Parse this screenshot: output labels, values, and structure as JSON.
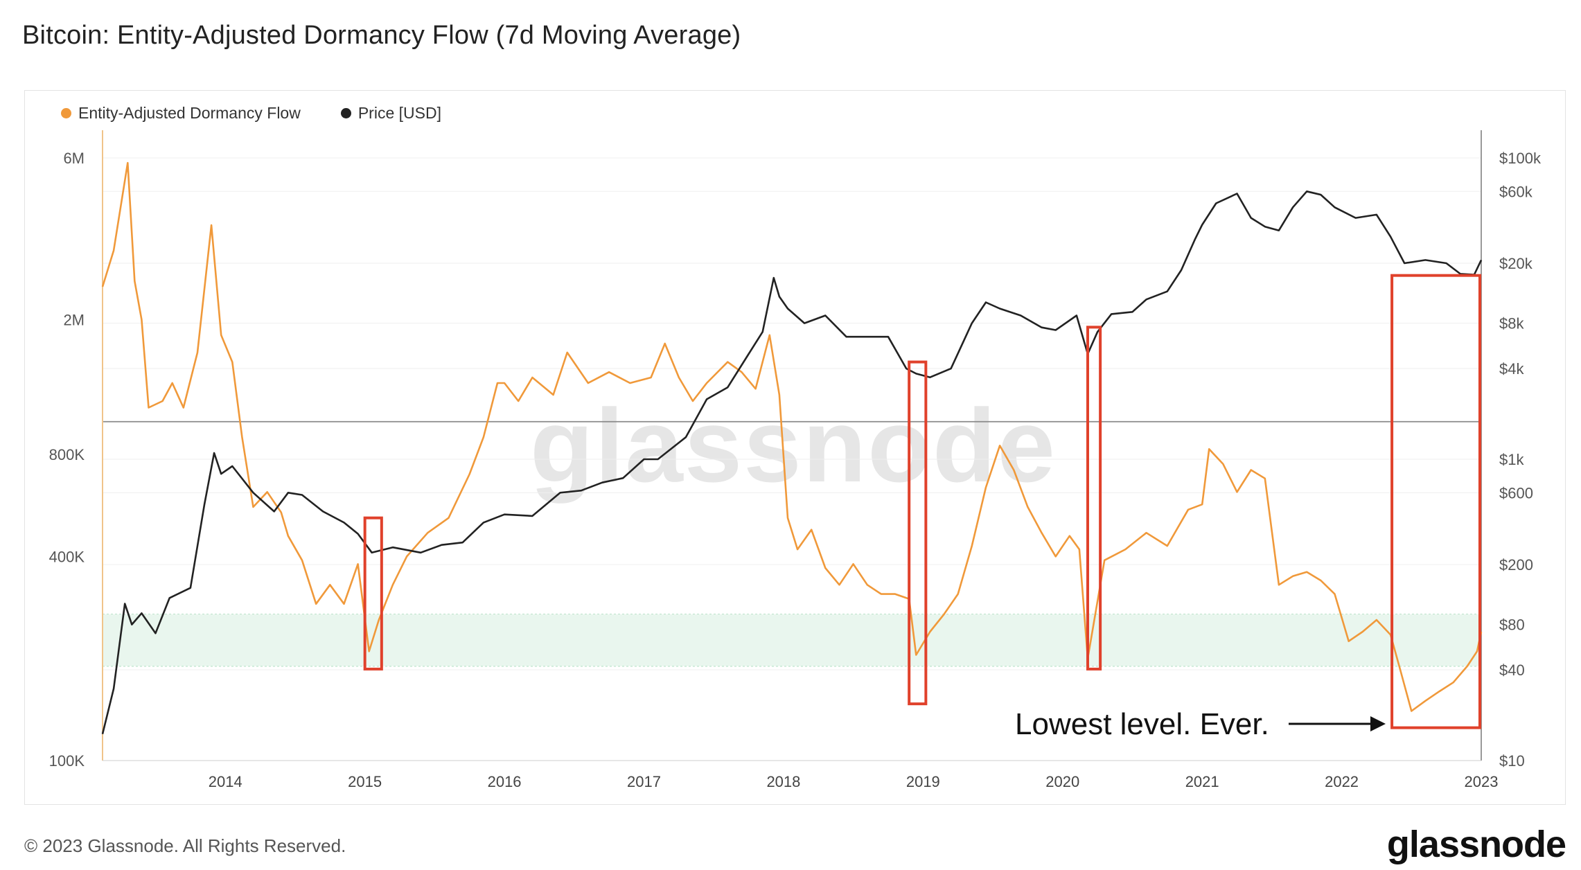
{
  "title": "Bitcoin: Entity-Adjusted Dormancy Flow (7d Moving Average)",
  "legend": [
    {
      "label": "Entity-Adjusted Dormancy Flow",
      "color": "#f0993a"
    },
    {
      "label": "Price [USD]",
      "color": "#222222"
    }
  ],
  "footer": {
    "copyright": "© 2023 Glassnode. All Rights Reserved.",
    "brand": "glassnode",
    "watermark": "glassnode"
  },
  "annotation": "Lowest level. Ever.",
  "colors": {
    "dormancy": "#f0993a",
    "price": "#222222",
    "highlight_box": "#e0412b",
    "low_band": "#e9f6ee",
    "low_band_border": "#9fd7b4"
  },
  "chart_data": {
    "type": "line",
    "x_ticks": [
      "2014",
      "2015",
      "2016",
      "2017",
      "2018",
      "2019",
      "2020",
      "2021",
      "2022",
      "2023"
    ],
    "left_axis": {
      "scale": "log",
      "range": [
        100000,
        6000000
      ],
      "ticks": [
        "6M",
        "2M",
        "800K",
        "400K",
        "100K"
      ],
      "tick_values": [
        6000000,
        2000000,
        800000,
        400000,
        100000
      ]
    },
    "right_axis": {
      "scale": "log",
      "range": [
        10,
        100000
      ],
      "ticks": [
        "$100k",
        "$60k",
        "$20k",
        "$8k",
        "$4k",
        "$1k",
        "$600",
        "$200",
        "$80",
        "$40",
        "$10"
      ],
      "tick_values": [
        100000,
        60000,
        20000,
        8000,
        4000,
        1000,
        600,
        200,
        80,
        40,
        10
      ]
    },
    "reference_line_left_value": 1000000,
    "low_band_left": [
      190000,
      270000
    ],
    "highlight_periods": [
      [
        2015.0,
        2015.12
      ],
      [
        2018.9,
        2019.02
      ],
      [
        2020.18,
        2020.27
      ],
      [
        2022.36,
        2022.99
      ]
    ],
    "series": [
      {
        "name": "Entity-Adjusted Dormancy Flow",
        "axis": "left",
        "x": [
          2013.12,
          2013.2,
          2013.3,
          2013.35,
          2013.4,
          2013.45,
          2013.55,
          2013.62,
          2013.7,
          2013.8,
          2013.9,
          2013.97,
          2014.05,
          2014.12,
          2014.2,
          2014.3,
          2014.4,
          2014.45,
          2014.55,
          2014.65,
          2014.75,
          2014.85,
          2014.95,
          2015.03,
          2015.1,
          2015.2,
          2015.3,
          2015.45,
          2015.6,
          2015.75,
          2015.85,
          2015.95,
          2016.0,
          2016.1,
          2016.2,
          2016.35,
          2016.45,
          2016.6,
          2016.75,
          2016.9,
          2017.05,
          2017.15,
          2017.25,
          2017.35,
          2017.45,
          2017.6,
          2017.7,
          2017.8,
          2017.9,
          2017.97,
          2018.03,
          2018.1,
          2018.2,
          2018.3,
          2018.4,
          2018.5,
          2018.6,
          2018.7,
          2018.8,
          2018.9,
          2018.95,
          2019.05,
          2019.15,
          2019.25,
          2019.35,
          2019.45,
          2019.55,
          2019.65,
          2019.75,
          2019.85,
          2019.95,
          2020.05,
          2020.12,
          2020.18,
          2020.22,
          2020.3,
          2020.45,
          2020.6,
          2020.75,
          2020.9,
          2021.0,
          2021.05,
          2021.15,
          2021.25,
          2021.35,
          2021.45,
          2021.55,
          2021.65,
          2021.75,
          2021.85,
          2021.95,
          2022.05,
          2022.15,
          2022.25,
          2022.35,
          2022.42,
          2022.5,
          2022.6,
          2022.7,
          2022.8,
          2022.9,
          2022.97,
          2023.0
        ],
        "values": [
          2500000,
          3200000,
          5800000,
          2600000,
          2000000,
          1100000,
          1150000,
          1300000,
          1100000,
          1600000,
          3800000,
          1800000,
          1500000,
          900000,
          560000,
          620000,
          540000,
          460000,
          390000,
          290000,
          330000,
          290000,
          380000,
          210000,
          260000,
          330000,
          400000,
          470000,
          520000,
          700000,
          900000,
          1300000,
          1300000,
          1150000,
          1350000,
          1200000,
          1600000,
          1300000,
          1400000,
          1300000,
          1350000,
          1700000,
          1350000,
          1150000,
          1300000,
          1500000,
          1400000,
          1250000,
          1800000,
          1200000,
          520000,
          420000,
          480000,
          370000,
          330000,
          380000,
          330000,
          310000,
          310000,
          300000,
          205000,
          240000,
          270000,
          310000,
          430000,
          640000,
          850000,
          720000,
          560000,
          470000,
          400000,
          460000,
          420000,
          200000,
          250000,
          390000,
          420000,
          470000,
          430000,
          550000,
          570000,
          830000,
          750000,
          620000,
          720000,
          680000,
          330000,
          350000,
          360000,
          340000,
          310000,
          225000,
          240000,
          260000,
          235000,
          185000,
          140000,
          150000,
          160000,
          170000,
          190000,
          210000,
          240000
        ]
      },
      {
        "name": "Price [USD]",
        "axis": "right",
        "x": [
          2013.12,
          2013.2,
          2013.28,
          2013.33,
          2013.4,
          2013.5,
          2013.6,
          2013.75,
          2013.85,
          2013.92,
          2013.97,
          2014.05,
          2014.2,
          2014.35,
          2014.45,
          2014.55,
          2014.7,
          2014.85,
          2014.95,
          2015.05,
          2015.2,
          2015.4,
          2015.55,
          2015.7,
          2015.85,
          2016.0,
          2016.2,
          2016.4,
          2016.55,
          2016.7,
          2016.85,
          2017.0,
          2017.1,
          2017.3,
          2017.45,
          2017.6,
          2017.75,
          2017.85,
          2017.93,
          2017.97,
          2018.03,
          2018.15,
          2018.3,
          2018.45,
          2018.6,
          2018.75,
          2018.88,
          2018.95,
          2019.05,
          2019.2,
          2019.35,
          2019.45,
          2019.55,
          2019.7,
          2019.85,
          2019.95,
          2020.1,
          2020.18,
          2020.25,
          2020.35,
          2020.5,
          2020.6,
          2020.75,
          2020.85,
          2020.95,
          2021.0,
          2021.1,
          2021.25,
          2021.35,
          2021.45,
          2021.55,
          2021.65,
          2021.75,
          2021.85,
          2021.95,
          2022.1,
          2022.25,
          2022.35,
          2022.45,
          2022.6,
          2022.75,
          2022.85,
          2022.95,
          2023.0
        ],
        "values": [
          15,
          30,
          110,
          80,
          95,
          70,
          120,
          140,
          500,
          1100,
          800,
          900,
          600,
          450,
          600,
          580,
          450,
          380,
          320,
          240,
          260,
          240,
          270,
          280,
          380,
          430,
          420,
          600,
          620,
          700,
          750,
          1000,
          1000,
          1400,
          2500,
          3000,
          5000,
          7000,
          16000,
          12000,
          10000,
          8000,
          9000,
          6500,
          6500,
          6500,
          4000,
          3700,
          3500,
          4000,
          8000,
          11000,
          10000,
          9000,
          7500,
          7200,
          9000,
          5000,
          7000,
          9200,
          9500,
          11500,
          13000,
          18000,
          29000,
          36000,
          50000,
          58000,
          40000,
          35000,
          33000,
          47000,
          60000,
          57000,
          47000,
          40000,
          42000,
          30000,
          20000,
          21000,
          20000,
          17000,
          16800,
          21000
        ]
      }
    ]
  }
}
